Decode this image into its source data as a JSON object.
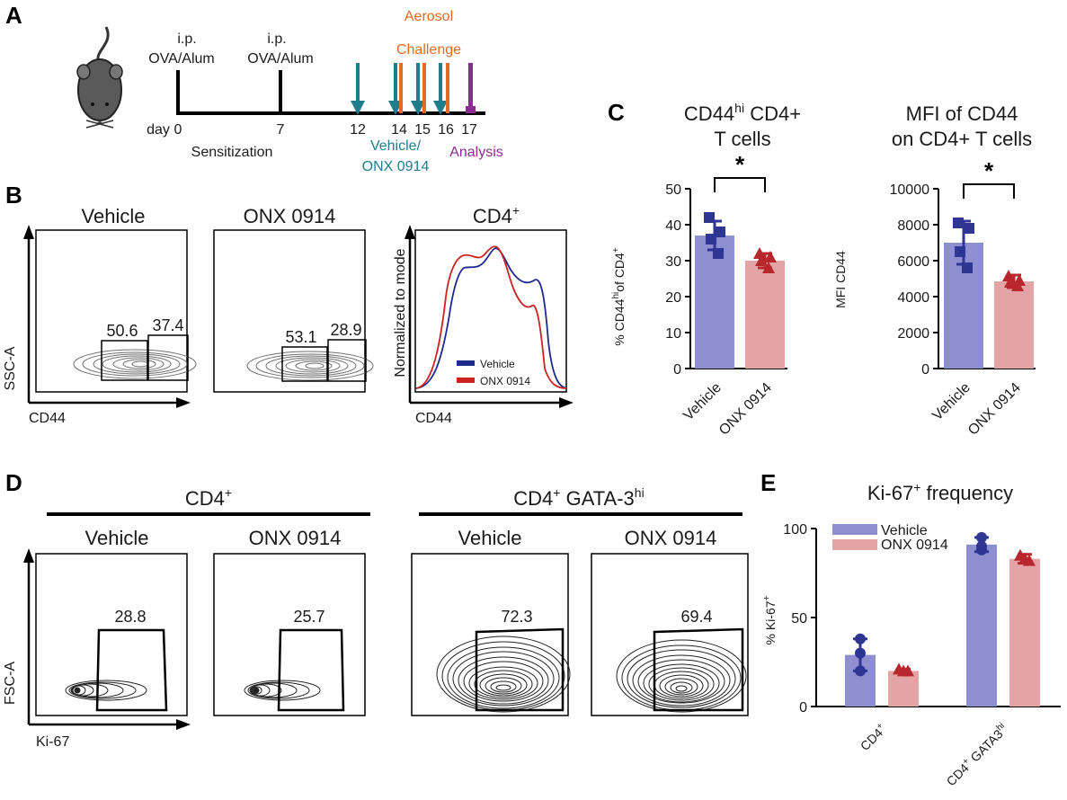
{
  "colors": {
    "vehicle_bar": "#8d8fd1",
    "onx_bar": "#e3a4a6",
    "vehicle_point": "#2e3592",
    "onx_point": "#b8272d",
    "vehicle_line": "#1f2a8c",
    "onx_line": "#cc2222",
    "teal": "#1f7d8c",
    "orange": "#e56b25",
    "purple": "#8c2b91",
    "mouse_body": "#5a5a5a",
    "contour": "#6f6f6f"
  },
  "panel_labels": {
    "a": "A",
    "b": "B",
    "c": "C",
    "d": "D",
    "e": "E"
  },
  "panel_a": {
    "ip1_line1": "i.p.",
    "ip1_line2": "OVA/Alum",
    "ip2_line1": "i.p.",
    "ip2_line2": "OVA/Alum",
    "aerosol_line1": "Aerosol",
    "aerosol_line2": "Challenge",
    "day_label": "day",
    "days": [
      "0",
      "7",
      "12",
      "14",
      "15",
      "16",
      "17"
    ],
    "sensitization": "Sensitization",
    "vehicle_line1": "Vehicle/",
    "vehicle_line2": "ONX 0914",
    "analysis": "Analysis"
  },
  "panel_b": {
    "plot1_title": "Vehicle",
    "plot2_title": "ONX 0914",
    "plot3_title": "CD4",
    "plot3_title_sup": "+",
    "y_axis": "SSC-A",
    "x_axis": "CD44",
    "hist_y_axis": "Normalized to mode",
    "hist_x_axis": "CD44",
    "gates_plot1": [
      "50.6",
      "37.4"
    ],
    "gates_plot2": [
      "53.1",
      "28.9"
    ],
    "legend": [
      "Vehicle",
      "ONX 0914"
    ]
  },
  "panel_d": {
    "group1_title": "CD4",
    "group1_sup": "+",
    "group2_title_a": "CD4",
    "group2_title_sup1": "+",
    "group2_title_b": " GATA-3",
    "group2_title_sup2": "hi",
    "plot_titles": [
      "Vehicle",
      "ONX 0914",
      "Vehicle",
      "ONX 0914"
    ],
    "gate_values": [
      "28.8",
      "25.7",
      "72.3",
      "69.4"
    ],
    "y_axis": "FSC-A",
    "x_axis": "Ki-67"
  },
  "chart_data": [
    {
      "type": "bar",
      "panel": "C-left",
      "title_line1": "CD44",
      "title_line1_sup": "hi",
      "title_line1_rest": " CD4+",
      "title_line2": "T cells",
      "ylabel_main": "% CD44",
      "ylabel_sup": "hi",
      "ylabel_rest": "of CD4",
      "ylabel_sup2": "+",
      "categories": [
        "Vehicle",
        "ONX 0914"
      ],
      "values": [
        37,
        30
      ],
      "errors": [
        4,
        2
      ],
      "points": [
        [
          42,
          38,
          36,
          32
        ],
        [
          32,
          31,
          30,
          28
        ]
      ],
      "ylim": [
        0,
        50
      ],
      "yticks": [
        0,
        10,
        20,
        30,
        40,
        50
      ],
      "significance": "*"
    },
    {
      "type": "bar",
      "panel": "C-right",
      "title_line1": "MFI of CD44",
      "title_line2": "on CD4+ T cells",
      "ylabel": "MFI CD44",
      "categories": [
        "Vehicle",
        "ONX 0914"
      ],
      "values": [
        7000,
        4850
      ],
      "errors": [
        1200,
        350
      ],
      "points": [
        [
          8100,
          7800,
          6500,
          5600
        ],
        [
          5150,
          4900,
          4800,
          4600
        ]
      ],
      "ylim": [
        0,
        10000
      ],
      "yticks": [
        0,
        2000,
        4000,
        6000,
        8000,
        10000
      ],
      "significance": "*"
    },
    {
      "type": "bar",
      "panel": "E",
      "title": "Ki-67",
      "title_sup": "+",
      "title_rest": " frequency",
      "ylabel": "% Ki-67",
      "ylabel_sup": "+",
      "categories": [
        "CD4",
        "CD4 GATA3"
      ],
      "category_sup": [
        "+",
        "hi"
      ],
      "series": [
        {
          "name": "Vehicle",
          "values": [
            29,
            91
          ],
          "errors": [
            9,
            4
          ],
          "points": [
            [
              38,
              30,
              20
            ],
            [
              95,
              90,
              88
            ]
          ]
        },
        {
          "name": "ONX 0914",
          "values": [
            20,
            83
          ],
          "errors": [
            1,
            2.5
          ],
          "points": [
            [
              21,
              20,
              20
            ],
            [
              85,
              83,
              82
            ]
          ]
        }
      ],
      "ylim": [
        0,
        100
      ],
      "yticks": [
        0,
        50,
        100
      ]
    }
  ]
}
